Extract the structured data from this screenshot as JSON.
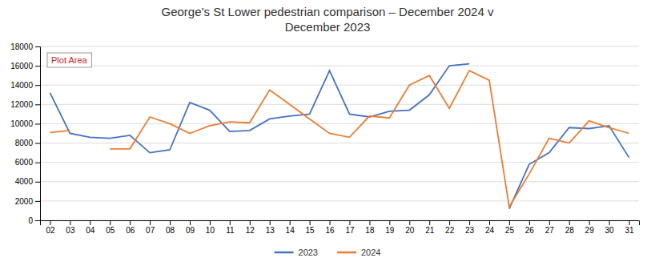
{
  "chart_data": {
    "type": "line",
    "title": "George’s St Lower pedestrian comparison – December 2024 v\nDecember 2023",
    "categories": [
      "02",
      "03",
      "04",
      "05",
      "06",
      "07",
      "08",
      "09",
      "10",
      "11",
      "12",
      "13",
      "14",
      "15",
      "16",
      "17",
      "18",
      "19",
      "20",
      "21",
      "22",
      "23",
      "24",
      "25",
      "26",
      "27",
      "28",
      "29",
      "30",
      "31"
    ],
    "series": [
      {
        "name": "2023",
        "color": "#4472c4",
        "values": [
          13200,
          9000,
          8600,
          8500,
          8800,
          7000,
          7300,
          12200,
          11400,
          9200,
          9300,
          10500,
          10800,
          11000,
          15500,
          11000,
          10700,
          11300,
          11400,
          13000,
          16000,
          16200,
          null,
          1200,
          5800,
          7000,
          9600,
          9500,
          9800,
          6500
        ]
      },
      {
        "name": "2024",
        "color": "#ed7d31",
        "values": [
          9100,
          9300,
          null,
          7400,
          7400,
          10700,
          10000,
          9000,
          9800,
          10200,
          10100,
          13500,
          12000,
          10500,
          9000,
          8600,
          10800,
          10600,
          14000,
          15000,
          11600,
          15500,
          14500,
          1400,
          4800,
          8500,
          8000,
          10300,
          9600,
          9000
        ]
      }
    ],
    "ylim": [
      0,
      18000
    ],
    "yticks": [
      0,
      2000,
      4000,
      6000,
      8000,
      10000,
      12000,
      14000,
      16000,
      18000
    ],
    "grid": true,
    "legend": "bottom",
    "annotations": [
      "Plot Area"
    ]
  }
}
